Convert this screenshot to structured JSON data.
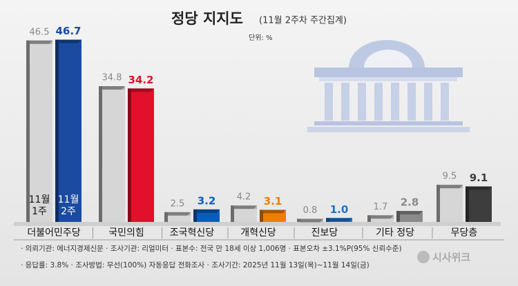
{
  "chart_data": {
    "type": "bar",
    "title": "정당 지지도",
    "subtitle": "(11월 2주차 주간집계)",
    "unit": "단위: %",
    "categories": [
      "더불어민주당",
      "국민의힘",
      "조국혁신당",
      "개혁신당",
      "진보당",
      "기타 정당",
      "무당층"
    ],
    "series": [
      {
        "name": "11월 1주",
        "color": "#b4b4b4",
        "values": [
          46.5,
          34.8,
          2.5,
          4.2,
          0.8,
          1.7,
          9.5
        ]
      },
      {
        "name": "11월 2주",
        "colors": [
          "#1a4ba0",
          "#e3102b",
          "#0b5cb8",
          "#ef7d00",
          "#1d72c8",
          "#8a8a8a",
          "#3d3d3d"
        ],
        "values": [
          46.7,
          34.2,
          3.2,
          3.1,
          1.0,
          2.8,
          9.1
        ],
        "value_labels": [
          "46.7",
          "34.2",
          "3.2",
          "3.1",
          "1.0",
          "2.8",
          "9.1"
        ]
      }
    ],
    "notes": [
      "· 의뢰기관: 에너지경제신문 · 조사기관: 리얼미터 · 표본수: 전국 만 18세 이상 1,006명 · 표본오차 ±3.1%P(95% 신뢰수준)",
      "· 응답률: 3.8% · 조사방법: 무선(100%) 자동응답 전화조사 · 조사기간: 2025년 11월 13일(목)~11월 14일(금)"
    ],
    "logo": "시사위크"
  }
}
